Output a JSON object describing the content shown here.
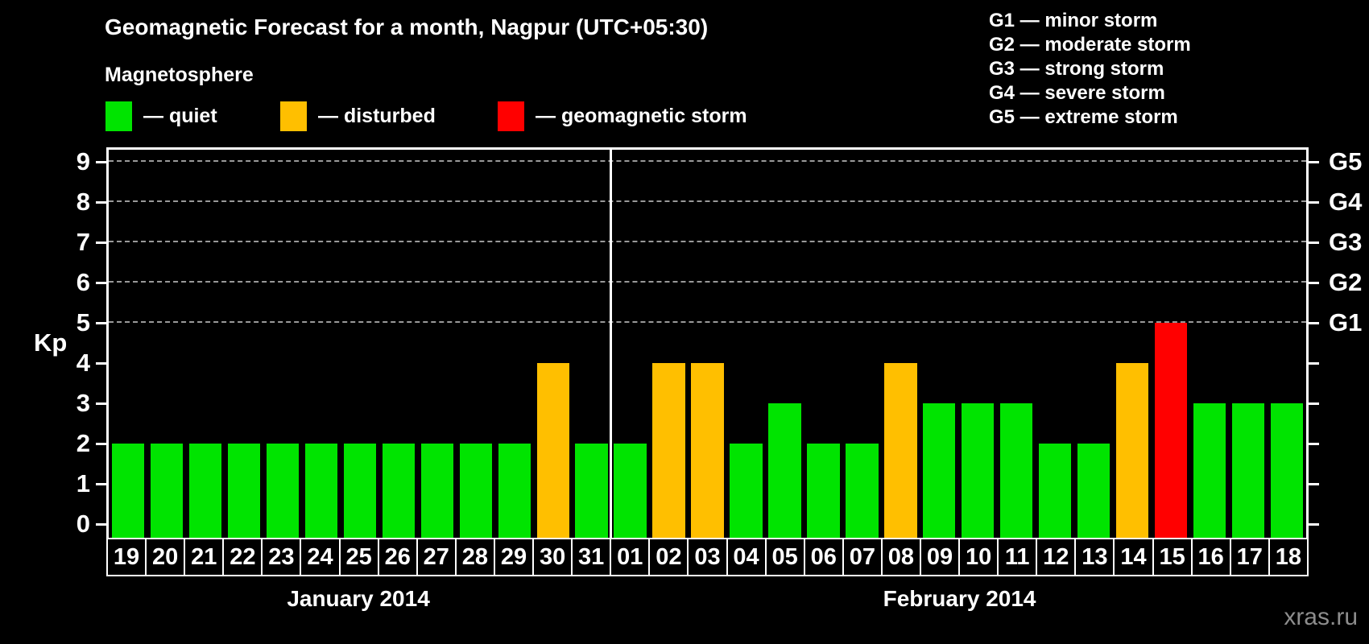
{
  "title": "Geomagnetic Forecast for a month, Nagpur (UTC+05:30)",
  "subtitle": "Magnetosphere",
  "legend": {
    "items": [
      {
        "status": "quiet",
        "label": "— quiet"
      },
      {
        "status": "disturbed",
        "label": "— disturbed"
      },
      {
        "status": "storm",
        "label": "— geomagnetic storm"
      }
    ]
  },
  "g_scale_legend": [
    "G1 — minor storm",
    "G2 — moderate storm",
    "G3 — strong storm",
    "G4 — severe storm",
    "G5 — extreme storm"
  ],
  "watermark": "xras.ru",
  "colors": {
    "background": "#000000",
    "text": "#ffffff",
    "axis": "#ffffff",
    "gridline": "#999999",
    "watermark": "#8d8d8d"
  },
  "chart_data": {
    "type": "bar",
    "title": "Geomagnetic Forecast for a month, Nagpur (UTC+05:30)",
    "xlabel": "",
    "ylabel": "Kp",
    "ylim": [
      0,
      9
    ],
    "yticks": [
      0,
      1,
      2,
      3,
      4,
      5,
      6,
      7,
      8,
      9
    ],
    "gridlines_at_kp": [
      5,
      6,
      7,
      8,
      9
    ],
    "grid": "dashed horizontal at storm levels only",
    "legend_position": "top-left",
    "right_axis": [
      {
        "kp": 5,
        "label": "G1"
      },
      {
        "kp": 6,
        "label": "G2"
      },
      {
        "kp": 7,
        "label": "G3"
      },
      {
        "kp": 8,
        "label": "G4"
      },
      {
        "kp": 9,
        "label": "G5"
      }
    ],
    "status_colors": {
      "quiet": "#00e400",
      "disturbed": "#ffbf00",
      "storm": "#ff0000"
    },
    "months": [
      {
        "label": "January 2014",
        "days": [
          "19",
          "20",
          "21",
          "22",
          "23",
          "24",
          "25",
          "26",
          "27",
          "28",
          "29",
          "30",
          "31"
        ],
        "kp": [
          2,
          2,
          2,
          2,
          2,
          2,
          2,
          2,
          2,
          2,
          2,
          4,
          2
        ],
        "status": [
          "quiet",
          "quiet",
          "quiet",
          "quiet",
          "quiet",
          "quiet",
          "quiet",
          "quiet",
          "quiet",
          "quiet",
          "quiet",
          "disturbed",
          "quiet"
        ]
      },
      {
        "label": "February 2014",
        "days": [
          "01",
          "02",
          "03",
          "04",
          "05",
          "06",
          "07",
          "08",
          "09",
          "10",
          "11",
          "12",
          "13",
          "14",
          "15",
          "16",
          "17",
          "18"
        ],
        "kp": [
          2,
          4,
          4,
          2,
          3,
          2,
          2,
          4,
          3,
          3,
          3,
          2,
          2,
          4,
          5,
          3,
          3,
          3
        ],
        "status": [
          "quiet",
          "disturbed",
          "disturbed",
          "quiet",
          "quiet",
          "quiet",
          "quiet",
          "disturbed",
          "quiet",
          "quiet",
          "quiet",
          "quiet",
          "quiet",
          "disturbed",
          "storm",
          "quiet",
          "quiet",
          "quiet"
        ]
      }
    ]
  }
}
